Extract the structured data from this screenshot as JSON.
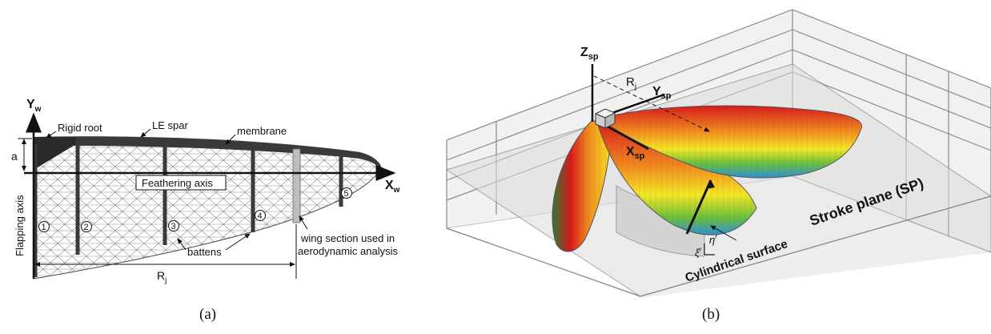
{
  "panel_a": {
    "caption": "(a)",
    "axis_y_label": "Y",
    "axis_y_sub": "w",
    "axis_x_label": "X",
    "axis_x_sub": "w",
    "rigid_root": "Rigid root",
    "le_spar": "LE spar",
    "membrane": "membrane",
    "a_label": "a",
    "feathering_axis": "Feathering axis",
    "flapping_axis": "Flapping axis",
    "battens": "battens",
    "wing_section_line1": "wing section used in",
    "wing_section_line2": "aerodynamic analysis",
    "rj_label": "R",
    "rj_sub": "j",
    "batten_numbers": [
      "1",
      "2",
      "3",
      "4",
      "5"
    ]
  },
  "panel_b": {
    "caption": "(b)",
    "z_label": "Z",
    "z_sub": "sp",
    "y_label": "Y",
    "y_sub": "sp",
    "x_label": "X",
    "x_sub": "sp",
    "rj_label": "R",
    "rj_sub": "j",
    "stroke_plane": "Stroke plane (SP)",
    "cylindrical_surface": "Cylindrical surface",
    "xi_label": "ξ",
    "xi_sup": "r",
    "eta_label": "η",
    "eta_sup": "r"
  },
  "colors": {
    "spar": "#3a3a3a",
    "mesh": "#777777",
    "wing_red": "#d7191c",
    "wing_yellow": "#f5e625",
    "wing_green": "#6bbf3a",
    "wing_blue": "#2f8fd6",
    "plane_gray": "#c8c8c8"
  }
}
